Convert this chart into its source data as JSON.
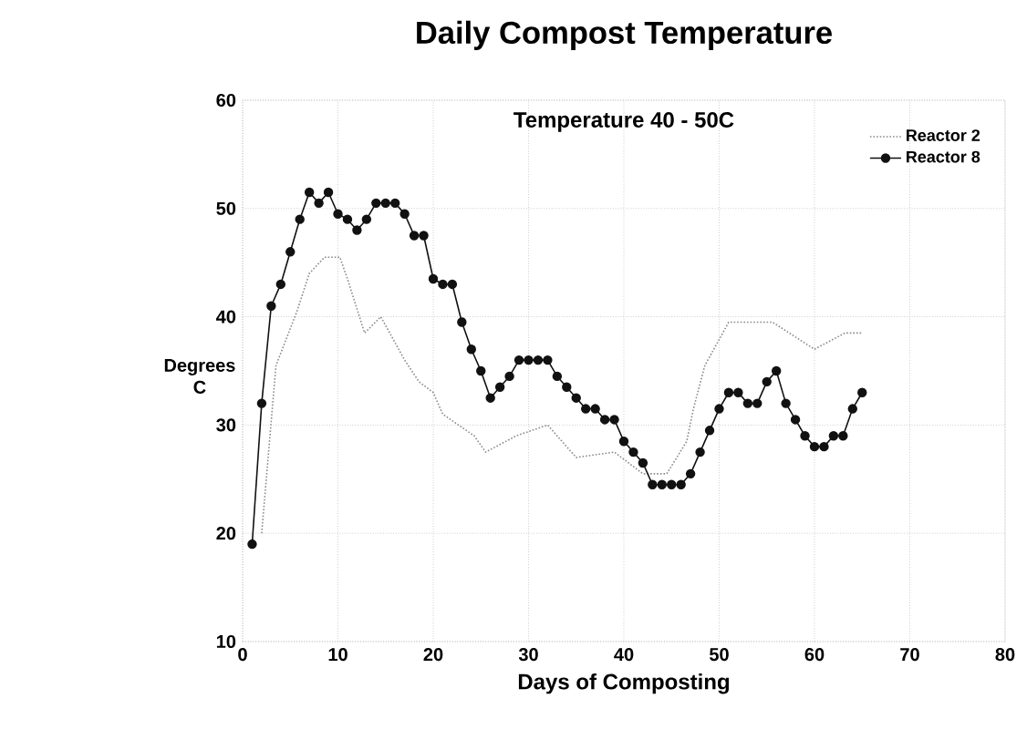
{
  "chart_data": {
    "type": "line",
    "title": "Daily Compost Temperature",
    "annotations": [
      "Temperature 40 - 50C"
    ],
    "xlabel": "Days of Composting",
    "ylabel": "Degrees C",
    "xlim": [
      0,
      80
    ],
    "xticks": [
      0,
      10,
      20,
      30,
      40,
      50,
      60,
      70,
      80
    ],
    "ylim": [
      10,
      60
    ],
    "yticks": [
      10,
      20,
      30,
      40,
      50,
      60
    ],
    "grid": true,
    "legend": "top right",
    "series": [
      {
        "name": "Reactor 2",
        "color": "#8a8a8a",
        "marker": "none",
        "line_style": "dotted",
        "x": [
          2,
          3.5,
          5.7,
          7,
          8.6,
          10.2,
          11,
          12.8,
          14.5,
          17,
          18.5,
          20,
          21,
          24.3,
          25.5,
          28.7,
          32,
          35,
          39,
          42,
          44.5,
          46.6,
          47.3,
          48.5,
          51,
          55.6,
          60,
          63.2,
          65
        ],
        "values": [
          20,
          35.5,
          40.5,
          44,
          45.5,
          45.5,
          43.5,
          38.5,
          40,
          36,
          34,
          33,
          31,
          29,
          27.5,
          29,
          30,
          27,
          27.5,
          25.5,
          25.5,
          28.5,
          31.5,
          35.5,
          39.5,
          39.5,
          37,
          38.5,
          38.5
        ]
      },
      {
        "name": "Reactor 8",
        "color": "#111111",
        "marker": "circle",
        "line_style": "solid",
        "x": [
          1,
          2,
          3,
          4,
          5,
          6,
          7,
          8,
          9,
          10,
          11,
          12,
          13,
          14,
          15,
          16,
          17,
          18,
          19,
          20,
          21,
          22,
          23,
          24,
          25,
          26,
          27,
          28,
          29,
          30,
          31,
          32,
          33,
          34,
          35,
          36,
          37,
          38,
          39,
          40,
          41,
          42,
          43,
          44,
          45,
          46,
          47,
          48,
          49,
          50,
          51,
          52,
          53,
          54,
          55,
          56,
          57,
          58,
          59,
          60,
          61,
          62,
          63,
          64,
          65
        ],
        "values": [
          19,
          32,
          41,
          43,
          46,
          49,
          51.5,
          50.5,
          51.5,
          49.5,
          49,
          48,
          49,
          50.5,
          50.5,
          50.5,
          49.5,
          47.5,
          47.5,
          43.5,
          43,
          43,
          39.5,
          37,
          35,
          32.5,
          33.5,
          34.5,
          36,
          36,
          36,
          36,
          34.5,
          33.5,
          32.5,
          31.5,
          31.5,
          30.5,
          30.5,
          28.5,
          27.5,
          26.5,
          24.5,
          24.5,
          24.5,
          24.5,
          25.5,
          27.5,
          29.5,
          31.5,
          33,
          33,
          32,
          32,
          34,
          35,
          32,
          30.5,
          29,
          28,
          28,
          29,
          29,
          31.5,
          33
        ]
      }
    ]
  }
}
